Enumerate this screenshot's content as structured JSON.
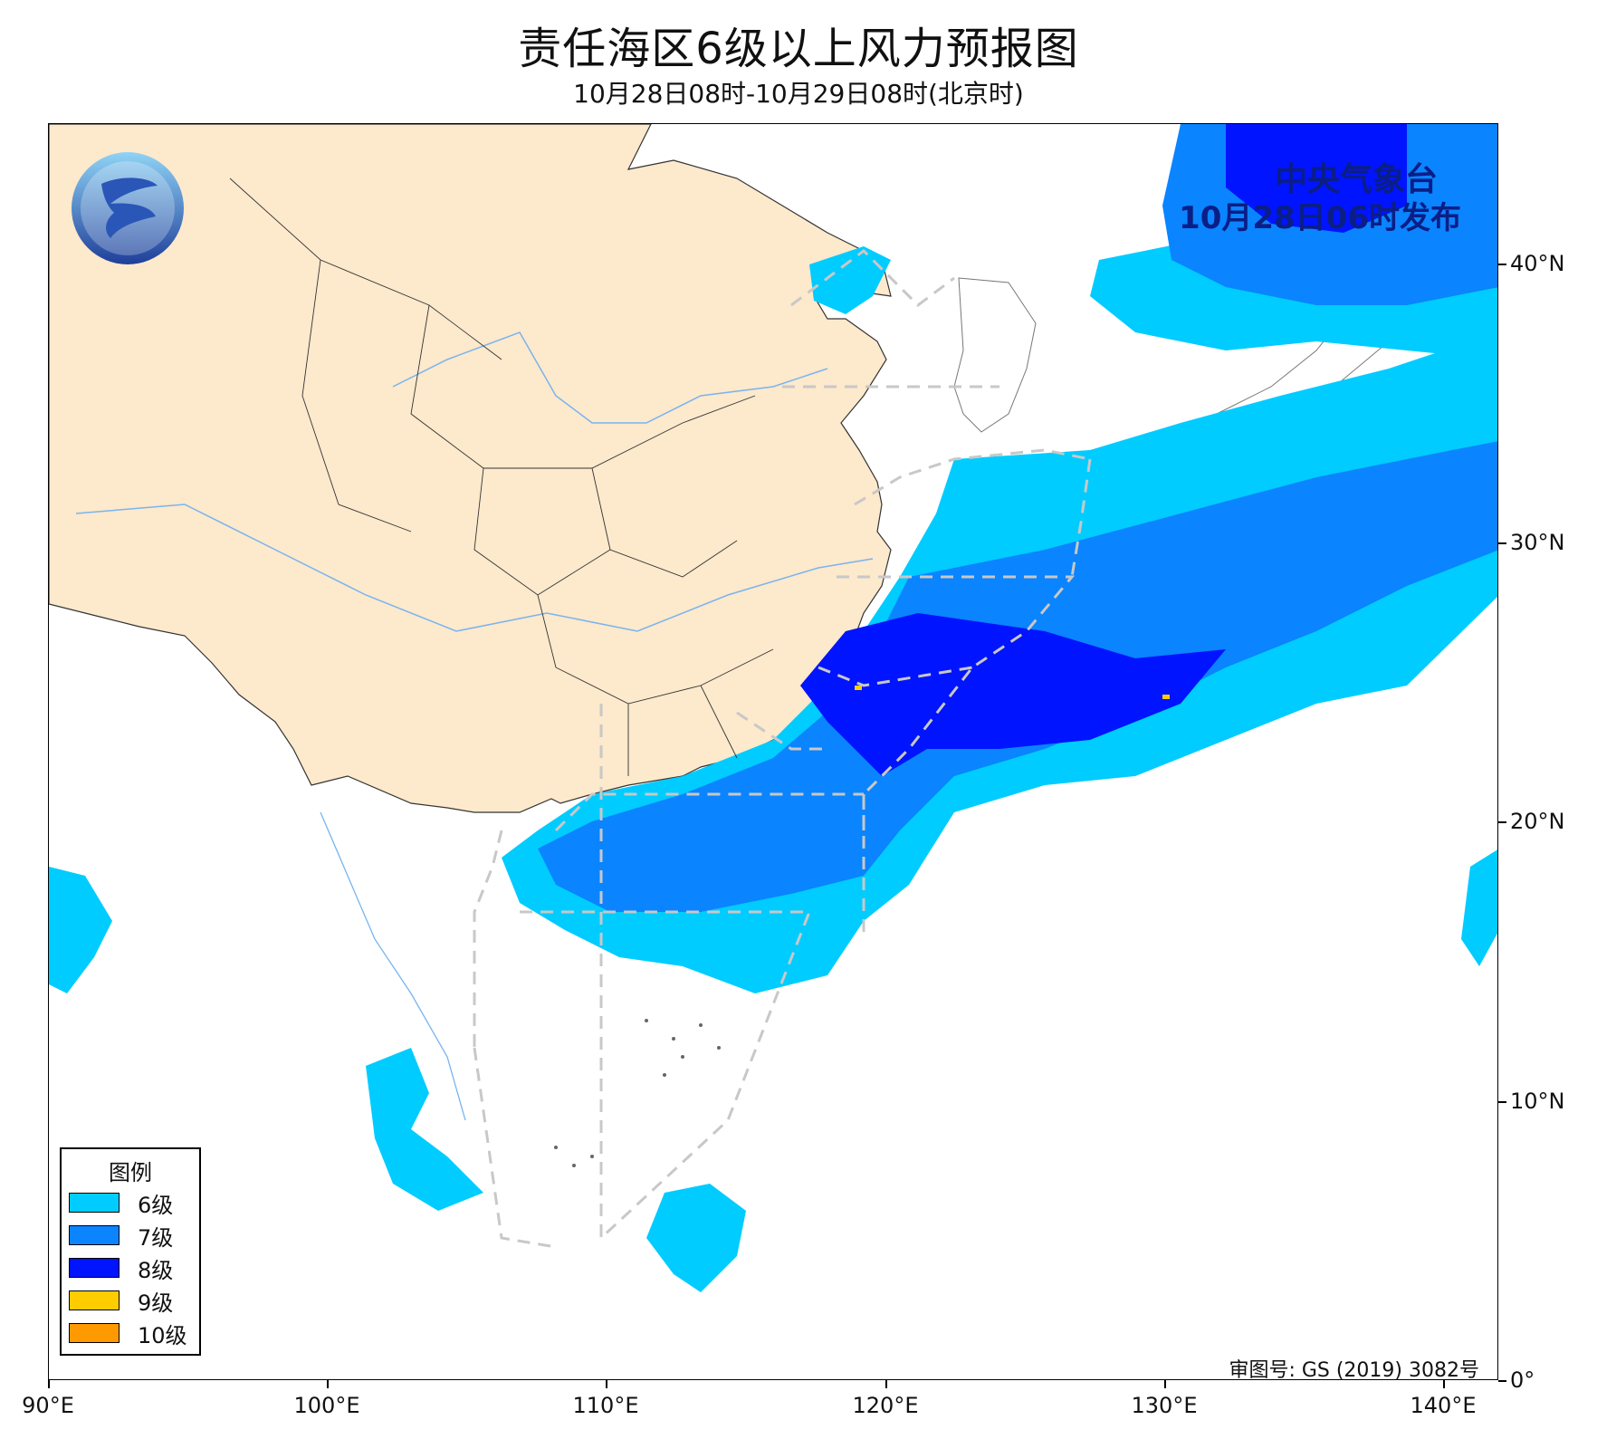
{
  "title": "责任海区6级以上风力预报图",
  "subtitle": "10月28日08时-10月29日08时(北京时)",
  "issuer": {
    "name": "中央气象台",
    "issued": "10月28日06时发布"
  },
  "approval": "审图号: GS (2019) 3082号",
  "axes": {
    "x_ticks": [
      "90°E",
      "100°E",
      "110°E",
      "120°E",
      "130°E",
      "140°E"
    ],
    "y_ticks": [
      "40°N",
      "30°N",
      "20°N",
      "10°N",
      "0°"
    ],
    "x_values": [
      90,
      100,
      110,
      120,
      130,
      140
    ],
    "y_values": [
      40,
      30,
      20,
      10,
      0
    ],
    "lon_range": [
      90,
      142
    ],
    "lat_range": [
      0,
      45
    ]
  },
  "legend": {
    "title": "图例",
    "items": [
      {
        "label": "6级",
        "color": "#00ccff"
      },
      {
        "label": "7级",
        "color": "#0a84ff"
      },
      {
        "label": "8级",
        "color": "#0014ff"
      },
      {
        "label": "9级",
        "color": "#ffcc00"
      },
      {
        "label": "10级",
        "color": "#ff9900"
      }
    ]
  },
  "colors": {
    "land_china": "#fde9cc",
    "river": "#78b4f0",
    "boundary": "#333333",
    "zone_line": "#c8c8c8",
    "issuer_text": "#0b1e86"
  },
  "icons": {
    "logo": "cma-logo-icon"
  }
}
